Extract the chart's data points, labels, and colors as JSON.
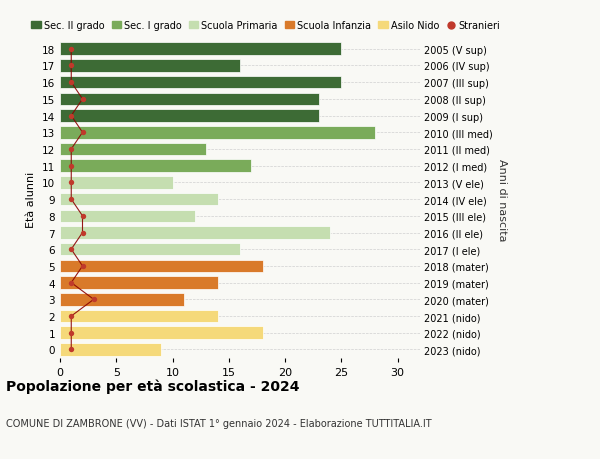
{
  "ages": [
    18,
    17,
    16,
    15,
    14,
    13,
    12,
    11,
    10,
    9,
    8,
    7,
    6,
    5,
    4,
    3,
    2,
    1,
    0
  ],
  "values": [
    25,
    16,
    25,
    23,
    23,
    28,
    13,
    17,
    10,
    14,
    12,
    24,
    16,
    18,
    14,
    11,
    14,
    18,
    9
  ],
  "right_labels": [
    "2005 (V sup)",
    "2006 (IV sup)",
    "2007 (III sup)",
    "2008 (II sup)",
    "2009 (I sup)",
    "2010 (III med)",
    "2011 (II med)",
    "2012 (I med)",
    "2013 (V ele)",
    "2014 (IV ele)",
    "2015 (III ele)",
    "2016 (II ele)",
    "2017 (I ele)",
    "2018 (mater)",
    "2019 (mater)",
    "2020 (mater)",
    "2021 (nido)",
    "2022 (nido)",
    "2023 (nido)"
  ],
  "bar_colors": [
    "#3d6b35",
    "#3d6b35",
    "#3d6b35",
    "#3d6b35",
    "#3d6b35",
    "#7aab5a",
    "#7aab5a",
    "#7aab5a",
    "#c5deb0",
    "#c5deb0",
    "#c5deb0",
    "#c5deb0",
    "#c5deb0",
    "#d97a2a",
    "#d97a2a",
    "#d97a2a",
    "#f5d97a",
    "#f5d97a",
    "#f5d97a"
  ],
  "stranieri_x": [
    1,
    1,
    1,
    2,
    1,
    2,
    1,
    1,
    1,
    1,
    2,
    2,
    1,
    2,
    1,
    3,
    1,
    1,
    1
  ],
  "legend_labels": [
    "Sec. II grado",
    "Sec. I grado",
    "Scuola Primaria",
    "Scuola Infanzia",
    "Asilo Nido",
    "Stranieri"
  ],
  "legend_colors": [
    "#3d6b35",
    "#7aab5a",
    "#c5deb0",
    "#d97a2a",
    "#f5d97a",
    "#c0392b"
  ],
  "title_bold": "Popolazione per età scolastica - 2024",
  "subtitle": "COMUNE DI ZAMBRONE (VV) - Dati ISTAT 1° gennaio 2024 - Elaborazione TUTTITALIA.IT",
  "ylabel": "Età alunni",
  "right_ylabel": "Anni di nascita",
  "xlim": [
    0,
    32
  ],
  "bg_color": "#f9f9f5",
  "grid_color": "#d0d0d0"
}
